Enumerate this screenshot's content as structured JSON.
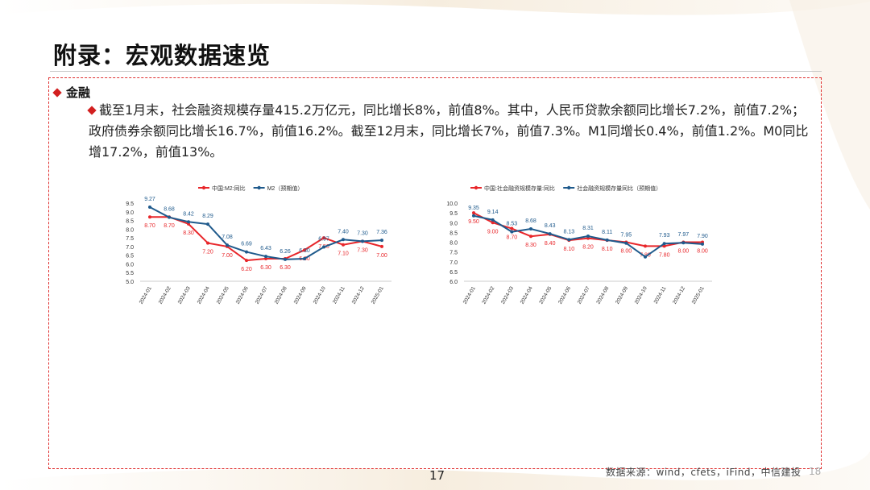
{
  "page": {
    "title": "附录：宏观数据速览",
    "section": "金融",
    "paragraph": "截至1月末，社会融资规模存量415.2万亿元，同比增长8%，前值8%。其中，人民币贷款余额同比增长7.2%，前值7.2%；政府债券余额同比增长16.7%，前值16.2%。截至12月末，同比增长7%，前值7.3%。M1同增长0.4%，前值1.2%。M0同比增17.2%，前值13%。",
    "page_number": "17",
    "source": "数据来源：wind，cfets，iFind，中信建投",
    "page_number_faint": "18"
  },
  "colors": {
    "red": "#e8262a",
    "blue": "#1f5a8c",
    "accent": "#d21f1f"
  },
  "chart_data": [
    {
      "type": "line",
      "categories": [
        "2024-01",
        "2024-02",
        "2024-03",
        "2024-04",
        "2024-05",
        "2024-06",
        "2024-07",
        "2024-08",
        "2024-09",
        "2024-10",
        "2024-11",
        "2024-12",
        "2025-01"
      ],
      "ylim": [
        5.0,
        9.5
      ],
      "yticks": [
        "5.0",
        "5.5",
        "6.0",
        "6.5",
        "7.0",
        "7.5",
        "8.0",
        "8.5",
        "9.0",
        "9.5"
      ],
      "series": [
        {
          "name": "中国:M2:同比",
          "color": "#e8262a",
          "values": [
            8.7,
            8.7,
            8.3,
            7.2,
            7.0,
            6.2,
            6.3,
            6.3,
            6.8,
            7.5,
            7.1,
            7.3,
            7.0
          ],
          "labels": [
            "8.70",
            "8.70",
            "8.30",
            "7.20",
            "7.00",
            "6.20",
            "6.30",
            "6.30",
            "6.80",
            "7.50",
            "7.10",
            "7.30",
            "7.00"
          ]
        },
        {
          "name": "M2（预期值）",
          "color": "#1f5a8c",
          "values": [
            9.27,
            8.68,
            8.42,
            8.29,
            7.08,
            6.69,
            6.43,
            6.26,
            6.3,
            6.97,
            7.4,
            7.3,
            7.36
          ],
          "labels": [
            "9.27",
            "8.68",
            "8.42",
            "8.29",
            "7.08",
            "6.69",
            "6.43",
            "6.26",
            "6.30",
            "6.97",
            "7.40",
            "7.30",
            "7.36"
          ]
        }
      ]
    },
    {
      "type": "line",
      "categories": [
        "2024-01",
        "2024-02",
        "2024-03",
        "2024-04",
        "2024-05",
        "2024-06",
        "2024-07",
        "2024-08",
        "2024-09",
        "2024-10",
        "2024-11",
        "2024-12",
        "2025-01"
      ],
      "ylim": [
        6.0,
        10.0
      ],
      "yticks": [
        "6.0",
        "6.5",
        "7.0",
        "7.5",
        "8.0",
        "8.5",
        "9.0",
        "9.5",
        "10.0"
      ],
      "series": [
        {
          "name": "中国:社会融资规模存量:同比",
          "color": "#e8262a",
          "values": [
            9.5,
            9.0,
            8.7,
            8.3,
            8.4,
            8.1,
            8.2,
            8.1,
            8.0,
            7.8,
            7.8,
            8.0,
            8.0
          ],
          "labels": [
            "9.50",
            "9.00",
            "8.70",
            "8.30",
            "8.40",
            "8.10",
            "8.20",
            "8.10",
            "8.00",
            "7.80",
            "7.80",
            "8.00",
            "8.00"
          ]
        },
        {
          "name": "社会融资规模存量同比（预期值）",
          "color": "#1f5a8c",
          "values": [
            9.35,
            9.14,
            8.53,
            8.68,
            8.43,
            8.13,
            8.31,
            8.11,
            7.95,
            7.25,
            7.93,
            7.97,
            7.9
          ],
          "labels": [
            "9.35",
            "9.14",
            "8.53",
            "8.68",
            "8.43",
            "8.13",
            "8.31",
            "8.11",
            "7.95",
            "",
            "7.93",
            "7.97",
            "7.90"
          ]
        }
      ]
    }
  ]
}
